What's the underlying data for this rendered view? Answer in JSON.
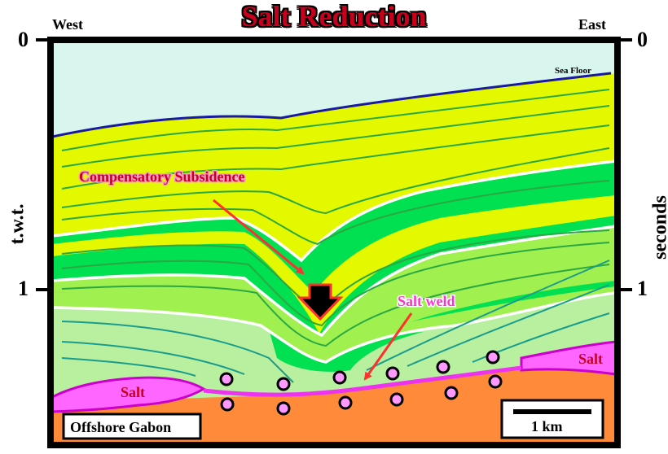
{
  "title": "Salt Reduction",
  "directions": {
    "west": "West",
    "east": "East"
  },
  "axis": {
    "left_label": "t.w.t.",
    "right_label": "seconds",
    "tick_0": "0",
    "tick_1": "1"
  },
  "annotations": {
    "sea_floor": "Sea Floor",
    "compensatory_subsidence": "Compensatory Subsidence",
    "salt_weld": "Salt weld",
    "salt_left": "Salt",
    "salt_right": "Salt",
    "location": "Offshore Gabon",
    "scale": "1 km"
  },
  "colors": {
    "water": "#d8f6ee",
    "yellow_layer": "#e4f800",
    "green_layer": "#00e050",
    "light_green_layer": "#a0f050",
    "pale_green_layer": "#b8f0a0",
    "salt": "#ff66ff",
    "basement": "#ff8a3a",
    "sea_floor_line": "#1a1aa0",
    "arrow_red": "#ff3030",
    "title_red": "#c8001e"
  }
}
